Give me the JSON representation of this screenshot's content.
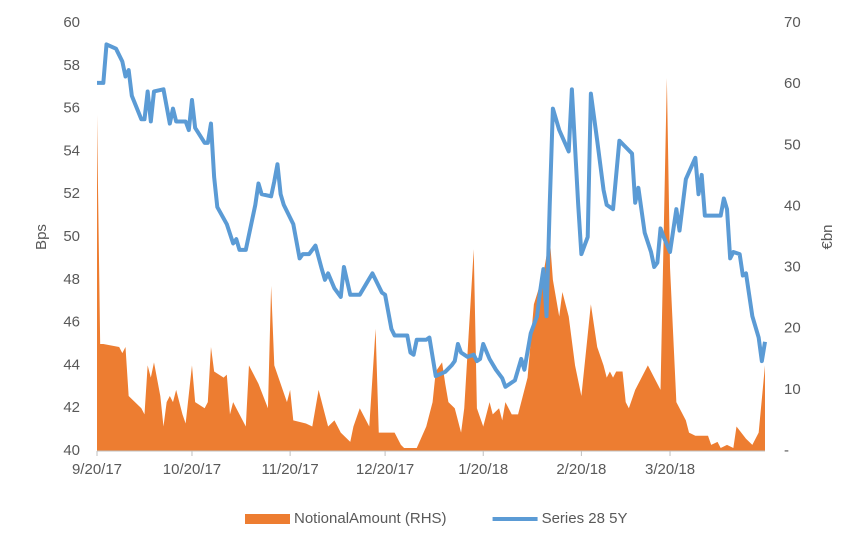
{
  "chart_data": {
    "type": "line",
    "ylabel": "Bps",
    "y2label": "€bn",
    "xlim": [
      "9/20/17",
      "4/19/18"
    ],
    "xticks": [
      "9/20/17",
      "10/20/17",
      "11/20/17",
      "12/20/17",
      "1/20/18",
      "2/20/18",
      "3/20/18"
    ],
    "ylim": [
      40,
      60
    ],
    "yticks": [
      40,
      42,
      44,
      46,
      48,
      50,
      52,
      54,
      56,
      58,
      60
    ],
    "y2lim": [
      0,
      70
    ],
    "y2ticks": [
      {
        "value": 0,
        "label": "-"
      },
      10,
      20,
      30,
      40,
      50,
      60,
      70
    ],
    "legend": "bottom",
    "series": [
      {
        "name": "NotionalAmount (RHS)",
        "color": "#ED7D31",
        "kind": "area",
        "axis": "y2",
        "x": [
          "9/20/17",
          "9/21/17",
          "9/22/17",
          "9/27/17",
          "9/28/17",
          "9/29/17",
          "9/30/17",
          "10/4/17",
          "10/5/17",
          "10/6/17",
          "10/7/17",
          "10/8/17",
          "10/10/17",
          "10/11/17",
          "10/12/17",
          "10/13/17",
          "10/14/17",
          "10/15/17",
          "10/17/17",
          "10/18/17",
          "10/20/17",
          "10/21/17",
          "10/24/17",
          "10/25/17",
          "10/26/17",
          "10/27/17",
          "10/30/17",
          "10/31/17",
          "11/1/17",
          "11/2/17",
          "11/3/17",
          "11/5/17",
          "11/6/17",
          "11/7/17",
          "11/10/17",
          "11/13/17",
          "11/14/17",
          "11/15/17",
          "11/17/17",
          "11/19/17",
          "11/20/17",
          "11/21/17",
          "11/25/17",
          "11/27/17",
          "11/29/17",
          "12/1/17",
          "12/2/17",
          "12/4/17",
          "12/6/17",
          "12/9/17",
          "12/10/17",
          "12/12/17",
          "12/15/17",
          "12/17/17",
          "12/18/17",
          "12/20/17",
          "12/23/17",
          "12/25/17",
          "12/26/17",
          "12/30/17",
          "1/2/18",
          "1/4/18",
          "1/5/18",
          "1/7/18",
          "1/8/18",
          "1/9/18",
          "1/11/18",
          "1/12/18",
          "1/13/18",
          "1/14/18",
          "1/17/18",
          "1/18/18",
          "1/20/18",
          "1/22/18",
          "1/23/18",
          "1/25/18",
          "1/26/18",
          "1/27/18",
          "1/29/18",
          "1/31/18",
          "2/1/18",
          "2/3/18",
          "2/5/18",
          "2/8/18",
          "2/10/18",
          "2/11/18",
          "2/13/18",
          "2/14/18",
          "2/16/18",
          "2/18/18",
          "2/20/18",
          "2/23/18",
          "2/25/18",
          "2/27/18",
          "2/28/18",
          "3/1/18",
          "3/2/18",
          "3/3/18",
          "3/5/18",
          "3/6/18",
          "3/7/18",
          "3/9/18",
          "3/11/18",
          "3/13/18",
          "3/15/18",
          "3/17/18",
          "3/19/18",
          "3/20/18",
          "3/22/18",
          "3/25/18",
          "3/26/18",
          "3/28/18",
          "4/1/18",
          "4/2/18",
          "4/4/18",
          "4/5/18",
          "4/7/18",
          "4/9/18",
          "4/10/18",
          "4/13/18",
          "4/15/18",
          "4/17/18",
          "4/19/18"
        ],
        "values": [
          55,
          17.5,
          17.5,
          17,
          16,
          17,
          9,
          7,
          6,
          14,
          12,
          14.5,
          9,
          4,
          8,
          9,
          8,
          10,
          6,
          4.5,
          14,
          8,
          7,
          8,
          17,
          13,
          12,
          12.5,
          6,
          8,
          7,
          5,
          4,
          14,
          11,
          7,
          27,
          14,
          11,
          8,
          10,
          5,
          4.5,
          4,
          10,
          6,
          4,
          5,
          3,
          1.5,
          4,
          7,
          4,
          20,
          3,
          3,
          3,
          1,
          0.5,
          0.5,
          4,
          8,
          13,
          14.5,
          11,
          8,
          7,
          5,
          3,
          7,
          33,
          7,
          4,
          8,
          6,
          7,
          5,
          8,
          6,
          6,
          8,
          12,
          24,
          29,
          35,
          28,
          22,
          26,
          22,
          14,
          9,
          24,
          17,
          14,
          12,
          13,
          12,
          13,
          13,
          8,
          7,
          10,
          12,
          14,
          12,
          10,
          61,
          30,
          8,
          5,
          3,
          2.5,
          2.5,
          1,
          1.5,
          0.5,
          1,
          0.5,
          4,
          2,
          1,
          3,
          14
        ]
      },
      {
        "name": "Series 28 5Y",
        "color": "#5B9BD5",
        "kind": "line",
        "x": [
          "9/20/17",
          "9/22/17",
          "9/23/17",
          "9/26/17",
          "9/28/17",
          "9/29/17",
          "9/30/17",
          "10/1/17",
          "10/4/17",
          "10/5/17",
          "10/6/17",
          "10/7/17",
          "10/8/17",
          "10/11/17",
          "10/13/17",
          "10/14/17",
          "10/15/17",
          "10/18/17",
          "10/19/17",
          "10/20/17",
          "10/21/17",
          "10/24/17",
          "10/25/17",
          "10/26/17",
          "10/27/17",
          "10/28/17",
          "10/31/17",
          "11/2/17",
          "11/3/17",
          "11/4/17",
          "11/6/17",
          "11/9/17",
          "11/10/17",
          "11/11/17",
          "11/14/17",
          "11/15/17",
          "11/16/17",
          "11/17/17",
          "11/18/17",
          "11/21/17",
          "11/23/17",
          "11/24/17",
          "11/26/17",
          "11/28/17",
          "11/30/17",
          "12/1/17",
          "12/2/17",
          "12/4/17",
          "12/6/17",
          "12/7/17",
          "12/9/17",
          "12/12/17",
          "12/14/17",
          "12/16/17",
          "12/17/17",
          "12/19/17",
          "12/20/17",
          "12/22/17",
          "12/23/17",
          "12/27/17",
          "12/28/17",
          "12/29/17",
          "12/30/17",
          "1/2/18",
          "1/3/18",
          "1/5/18",
          "1/8/18",
          "1/10/18",
          "1/11/18",
          "1/12/18",
          "1/13/18",
          "1/15/18",
          "1/17/18",
          "1/18/18",
          "1/19/18",
          "1/20/18",
          "1/22/18",
          "1/24/18",
          "1/26/18",
          "1/27/18",
          "1/29/18",
          "1/30/18",
          "2/1/18",
          "2/2/18",
          "2/4/18",
          "2/6/18",
          "2/7/18",
          "2/8/18",
          "2/9/18",
          "2/10/18",
          "2/11/18",
          "2/13/18",
          "2/16/18",
          "2/17/18",
          "2/18/18",
          "2/19/18",
          "2/20/18",
          "2/21/18",
          "2/22/18",
          "2/23/18",
          "2/25/18",
          "2/27/18",
          "2/28/18",
          "3/2/18",
          "3/4/18",
          "3/6/18",
          "3/8/18",
          "3/9/18",
          "3/10/18",
          "3/12/18",
          "3/14/18",
          "3/15/18",
          "3/16/18",
          "3/17/18",
          "3/18/18",
          "3/20/18",
          "3/22/18",
          "3/23/18",
          "3/25/18",
          "3/28/18",
          "3/29/18",
          "3/30/18",
          "3/31/18",
          "4/3/18",
          "4/5/18",
          "4/6/18",
          "4/7/18",
          "4/8/18",
          "4/9/18",
          "4/11/18",
          "4/12/18",
          "4/13/18",
          "4/14/18",
          "4/15/18",
          "4/17/18",
          "4/18/18",
          "4/19/18"
        ],
        "values": [
          57.2,
          57.2,
          59.0,
          58.8,
          58.2,
          57.5,
          57.8,
          56.6,
          55.5,
          55.5,
          56.8,
          55.4,
          56.8,
          56.9,
          55.3,
          56.0,
          55.4,
          55.4,
          55.0,
          56.4,
          55.1,
          54.4,
          54.4,
          55.3,
          52.8,
          51.4,
          50.6,
          49.7,
          49.9,
          49.4,
          49.4,
          51.5,
          52.5,
          52.0,
          51.9,
          52.6,
          53.4,
          52.0,
          51.5,
          50.6,
          49.0,
          49.2,
          49.2,
          49.6,
          48.5,
          48.0,
          48.3,
          47.6,
          47.2,
          48.6,
          47.3,
          47.3,
          47.8,
          48.3,
          48.0,
          47.4,
          47.3,
          45.7,
          45.4,
          45.4,
          44.6,
          44.5,
          45.2,
          45.2,
          45.3,
          43.5,
          43.7,
          44.0,
          44.2,
          45.0,
          44.6,
          44.4,
          44.5,
          44.2,
          44.3,
          45.0,
          44.3,
          43.8,
          43.4,
          43.0,
          43.2,
          43.3,
          44.3,
          43.8,
          45.5,
          46.3,
          47.5,
          48.5,
          46.3,
          51.5,
          56.0,
          55.0,
          54.0,
          56.9,
          54.2,
          51.5,
          49.2,
          49.6,
          50.0,
          56.7,
          54.5,
          52.2,
          51.5,
          51.3,
          54.5,
          54.2,
          53.9,
          51.6,
          52.3,
          50.2,
          49.3,
          48.6,
          48.8,
          50.4,
          50.0,
          49.3,
          51.3,
          50.3,
          52.7,
          53.7,
          52.0,
          52.9,
          51.0,
          51.0,
          51.0,
          51.8,
          51.3,
          49.0,
          49.3,
          49.2,
          48.2,
          48.3,
          47.3,
          46.3,
          45.3,
          44.2,
          45.1
        ]
      }
    ]
  }
}
